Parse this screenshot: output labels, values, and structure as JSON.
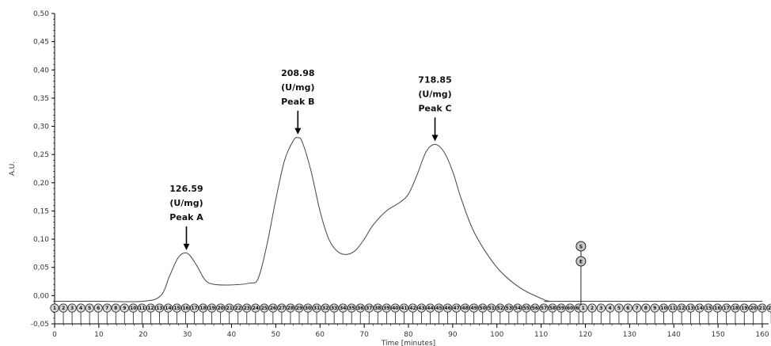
{
  "chart_data": {
    "type": "line",
    "xlabel": "Time [minutes]",
    "ylabel": "A.U.",
    "xlim": [
      0,
      160
    ],
    "ylim": [
      -0.05,
      0.5
    ],
    "x_ticks": [
      0,
      10,
      20,
      30,
      40,
      50,
      60,
      70,
      80,
      90,
      100,
      110,
      120,
      130,
      140,
      150,
      160
    ],
    "y_ticks": [
      -0.05,
      0.0,
      0.05,
      0.1,
      0.15,
      0.2,
      0.25,
      0.3,
      0.35,
      0.4,
      0.45,
      0.5
    ],
    "y_tick_labels": [
      "-0,05",
      "0,00",
      "0,05",
      "0,10",
      "0,15",
      "0,20",
      "0,25",
      "0,30",
      "0,35",
      "0,40",
      "0,45",
      "0,50"
    ],
    "grid": false,
    "series": [
      {
        "x": [
          0,
          10,
          20,
          24,
          26,
          28,
          30,
          32,
          34,
          36,
          40,
          44,
          46,
          48,
          50,
          52,
          54,
          55,
          56,
          58,
          60,
          62,
          64,
          66,
          68,
          70,
          72,
          75,
          78,
          80,
          82,
          84,
          86,
          88,
          90,
          92,
          95,
          100,
          105,
          110,
          112,
          115,
          160
        ],
        "y": [
          -0.01,
          -0.01,
          -0.01,
          0.0,
          0.035,
          0.068,
          0.075,
          0.055,
          0.028,
          0.02,
          0.019,
          0.022,
          0.03,
          0.09,
          0.17,
          0.24,
          0.275,
          0.28,
          0.272,
          0.22,
          0.15,
          0.1,
          0.078,
          0.073,
          0.08,
          0.1,
          0.125,
          0.15,
          0.165,
          0.18,
          0.215,
          0.255,
          0.268,
          0.255,
          0.22,
          0.17,
          0.11,
          0.05,
          0.015,
          -0.005,
          -0.01,
          -0.01,
          -0.01
        ]
      }
    ],
    "annotations": [
      {
        "value": "126.59",
        "unit": "(U/mg)",
        "label": "Peak A",
        "x": 29.8,
        "y": 0.075
      },
      {
        "value": "208.98",
        "unit": "(U/mg)",
        "label": "Peak B",
        "x": 55,
        "y": 0.28
      },
      {
        "value": "718.85",
        "unit": "(U/mg)",
        "label": "Peak C",
        "x": 86,
        "y": 0.268
      }
    ],
    "event_marker": {
      "x": 119,
      "labels": [
        "S",
        "E"
      ]
    },
    "fraction_markers": {
      "y": -0.022,
      "groups": [
        {
          "x_start": 0,
          "x_end": 118.5,
          "count": 61
        },
        {
          "x_start": 119.5,
          "x_end": 162,
          "count": 22
        }
      ]
    }
  }
}
